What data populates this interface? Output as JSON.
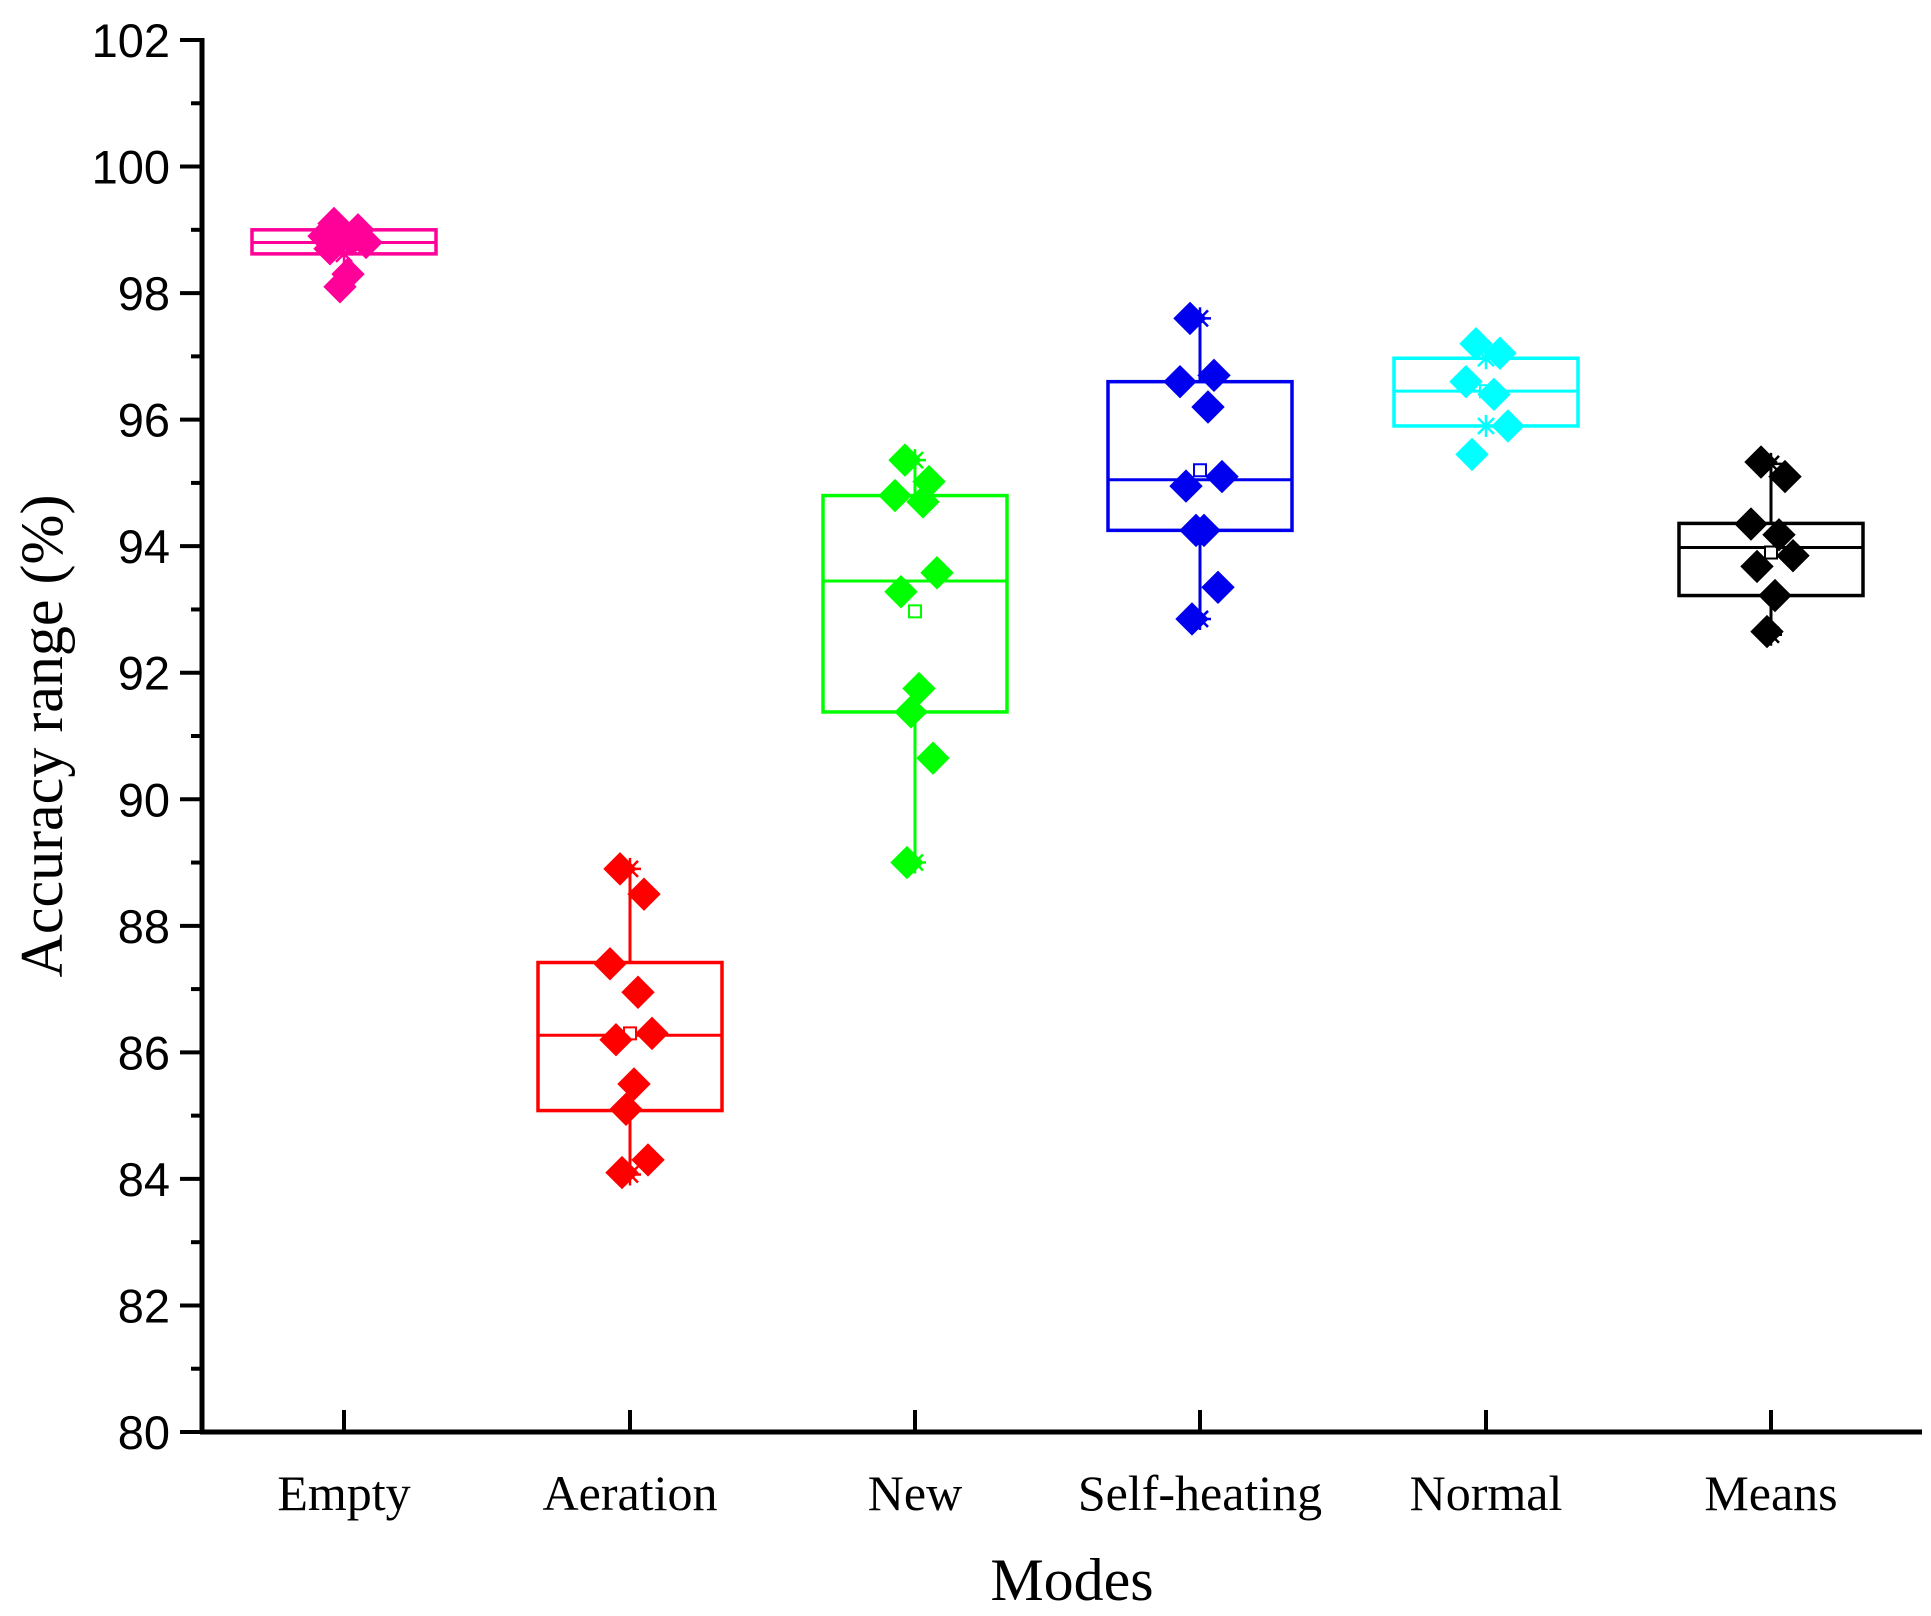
{
  "chart_data": {
    "type": "box",
    "xlabel": "Modes",
    "ylabel": "Accuracy range (%)",
    "ylim": [
      80,
      102
    ],
    "yticks": [
      80,
      82,
      84,
      86,
      88,
      90,
      92,
      94,
      96,
      98,
      100,
      102
    ],
    "categories": [
      "Empty",
      "Aeration",
      "New",
      "Self-heating",
      "Normal",
      "Means"
    ],
    "grid": false,
    "legend": "none",
    "series": [
      {
        "category": "Empty",
        "color": "#ff0099",
        "box": {
          "q1": 98.62,
          "median": 98.8,
          "q3": 99.0,
          "whisker_low": 98.62,
          "whisker_high": 99.0,
          "mean": 98.8
        },
        "points": [
          99.1,
          99.0,
          98.9,
          98.85,
          98.8,
          98.7,
          98.3,
          98.1
        ]
      },
      {
        "category": "Aeration",
        "color": "#ff0000",
        "box": {
          "q1": 85.08,
          "median": 86.27,
          "q3": 87.42,
          "whisker_low": 84.07,
          "whisker_high": 88.9,
          "mean": 86.3
        },
        "points": [
          88.9,
          88.5,
          87.4,
          86.95,
          86.3,
          86.2,
          85.5,
          85.1,
          84.3,
          84.1
        ]
      },
      {
        "category": "New",
        "color": "#00ff00",
        "box": {
          "q1": 91.38,
          "median": 93.45,
          "q3": 94.8,
          "whisker_low": 89.0,
          "whisker_high": 95.36,
          "mean": 92.97
        },
        "points": [
          95.36,
          95.02,
          94.8,
          94.7,
          93.58,
          93.28,
          91.75,
          91.38,
          90.65,
          89.0
        ]
      },
      {
        "category": "Self-heating",
        "color": "#0000ee",
        "box": {
          "q1": 94.25,
          "median": 95.05,
          "q3": 96.6,
          "whisker_low": 92.85,
          "whisker_high": 97.6,
          "mean": 95.2
        },
        "points": [
          97.6,
          96.7,
          96.6,
          96.2,
          95.1,
          94.95,
          94.25,
          94.25,
          93.35,
          92.85
        ]
      },
      {
        "category": "Normal",
        "color": "#00ffff",
        "box": {
          "q1": 95.9,
          "median": 96.45,
          "q3": 96.97,
          "whisker_low": 95.9,
          "whisker_high": 96.97,
          "mean": 96.45
        },
        "points": [
          97.2,
          97.05,
          96.6,
          96.4,
          95.9,
          95.45
        ]
      },
      {
        "category": "Means",
        "color": "#000000",
        "box": {
          "q1": 93.22,
          "median": 93.98,
          "q3": 94.36,
          "whisker_low": 92.6,
          "whisker_high": 95.3,
          "mean": 93.9
        },
        "points": [
          95.33,
          95.1,
          94.35,
          94.18,
          93.85,
          93.68,
          93.22,
          92.65
        ]
      }
    ]
  }
}
